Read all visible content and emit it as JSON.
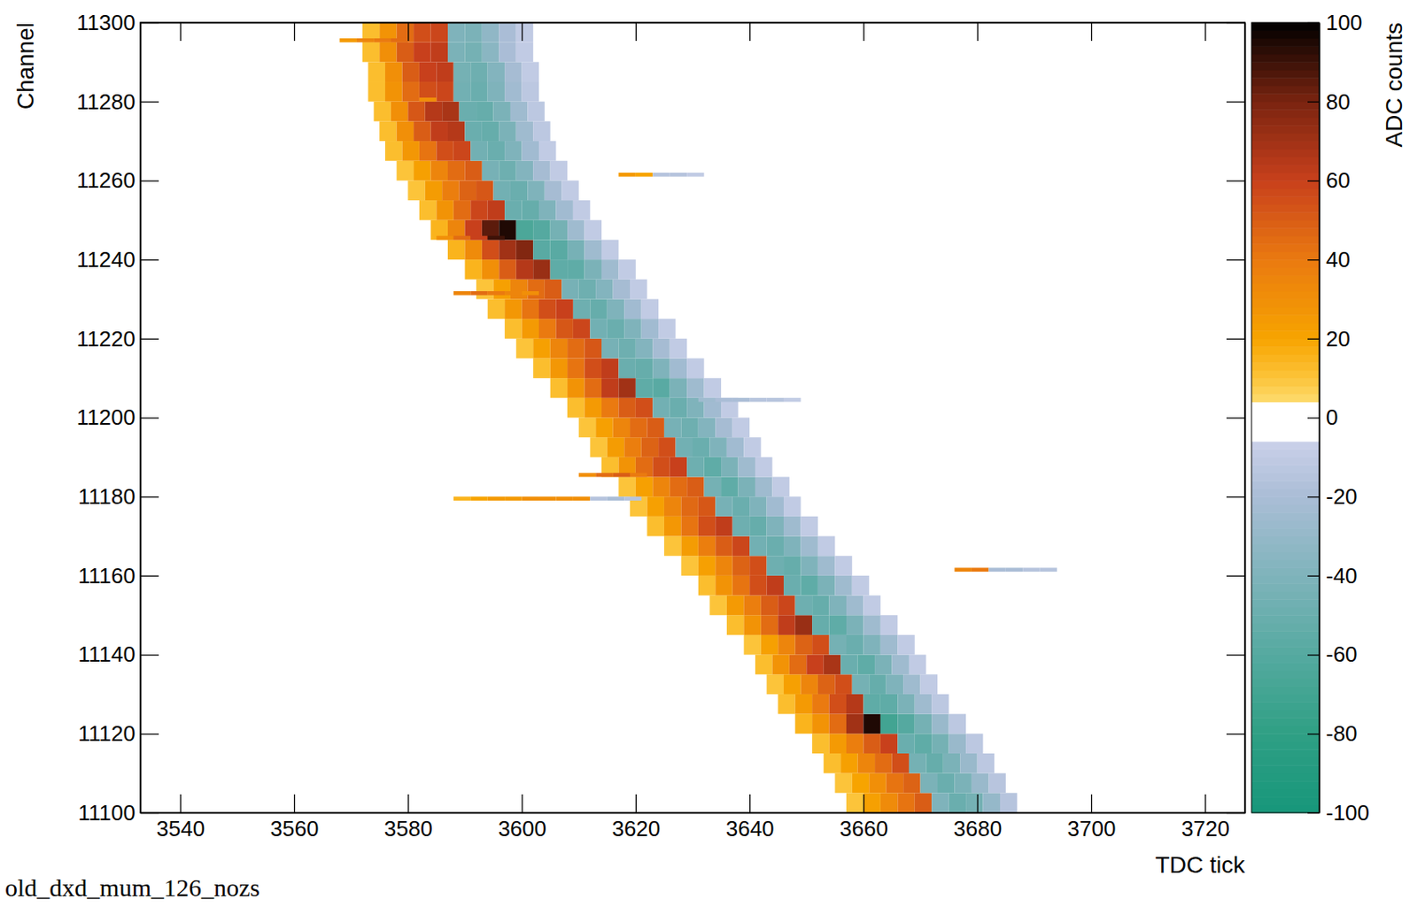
{
  "chart_data": {
    "type": "heatmap",
    "x_label": "TDC tick",
    "y_label": "Channel",
    "caption": "old_dxd_mum_126_nozs",
    "xlim": [
      3533,
      3727
    ],
    "ylim": [
      11100,
      11300
    ],
    "xticks": [
      3540,
      3560,
      3580,
      3600,
      3620,
      3640,
      3660,
      3680,
      3700,
      3720
    ],
    "yticks": [
      11100,
      11120,
      11140,
      11160,
      11180,
      11200,
      11220,
      11240,
      11260,
      11280,
      11300
    ],
    "colorbar": {
      "label": "ADC counts",
      "range": [
        -100,
        100
      ],
      "ticks": [
        -100,
        -80,
        -60,
        -40,
        -20,
        0,
        20,
        40,
        60,
        80,
        100
      ]
    },
    "blocks": [
      {
        "bin_channels": 5,
        "bin_ticks": 3,
        "rows": [
          {
            "channel": 11100,
            "tick0": 3657,
            "values": [
              10,
              22,
              32,
              42,
              50,
              -40,
              -50,
              -45,
              -30,
              -15
            ]
          },
          {
            "channel": 11105,
            "tick0": 3655,
            "values": [
              10,
              20,
              30,
              42,
              48,
              -42,
              -50,
              -42,
              -28,
              -14
            ]
          },
          {
            "channel": 11110,
            "tick0": 3653,
            "values": [
              12,
              22,
              35,
              45,
              55,
              -45,
              -52,
              -42,
              -28,
              -12
            ]
          },
          {
            "channel": 11115,
            "tick0": 3651,
            "values": [
              12,
              25,
              38,
              50,
              60,
              -50,
              -55,
              -45,
              -28,
              -12
            ]
          },
          {
            "channel": 11120,
            "tick0": 3648,
            "values": [
              15,
              28,
              45,
              70,
              95,
              -70,
              -60,
              -45,
              -28,
              -12
            ]
          },
          {
            "channel": 11125,
            "tick0": 3645,
            "values": [
              12,
              25,
              40,
              55,
              65,
              -55,
              -55,
              -42,
              -25,
              -12
            ]
          },
          {
            "channel": 11130,
            "tick0": 3643,
            "values": [
              10,
              22,
              35,
              48,
              55,
              -45,
              -52,
              -40,
              -25,
              -10
            ]
          },
          {
            "channel": 11135,
            "tick0": 3641,
            "values": [
              12,
              28,
              45,
              60,
              68,
              -50,
              -55,
              -42,
              -25,
              -10
            ]
          },
          {
            "channel": 11140,
            "tick0": 3639,
            "values": [
              10,
              22,
              35,
              48,
              55,
              -45,
              -50,
              -40,
              -25,
              -10
            ]
          },
          {
            "channel": 11145,
            "tick0": 3636,
            "values": [
              12,
              28,
              45,
              62,
              72,
              -52,
              -55,
              -42,
              -25,
              -10
            ]
          },
          {
            "channel": 11150,
            "tick0": 3633,
            "values": [
              10,
              25,
              38,
              50,
              58,
              -48,
              -52,
              -40,
              -25,
              -10
            ]
          },
          {
            "channel": 11155,
            "tick0": 3631,
            "values": [
              12,
              28,
              42,
              55,
              62,
              -50,
              -55,
              -42,
              -25,
              -10
            ]
          },
          {
            "channel": 11160,
            "tick0": 3628,
            "values": [
              10,
              22,
              35,
              48,
              55,
              -48,
              -52,
              -40,
              -25,
              -10
            ]
          },
          {
            "channel": 11165,
            "tick0": 3625,
            "values": [
              10,
              24,
              38,
              50,
              58,
              -46,
              -50,
              -40,
              -25,
              -10
            ]
          },
          {
            "channel": 11170,
            "tick0": 3622,
            "values": [
              12,
              26,
              42,
              55,
              62,
              -48,
              -52,
              -40,
              -25,
              -10
            ]
          },
          {
            "channel": 11175,
            "tick0": 3619,
            "values": [
              10,
              22,
              35,
              46,
              52,
              -44,
              -50,
              -40,
              -24,
              -10
            ]
          },
          {
            "channel": 11180,
            "tick0": 3617,
            "values": [
              10,
              22,
              35,
              45,
              50,
              -45,
              -55,
              -42,
              -25,
              -10
            ]
          },
          {
            "channel": 11185,
            "tick0": 3614,
            "values": [
              12,
              28,
              45,
              55,
              60,
              -48,
              -55,
              -42,
              -25,
              -10
            ]
          },
          {
            "channel": 11190,
            "tick0": 3612,
            "values": [
              10,
              24,
              38,
              48,
              55,
              -46,
              -50,
              -40,
              -24,
              -10
            ]
          },
          {
            "channel": 11195,
            "tick0": 3610,
            "values": [
              10,
              22,
              35,
              45,
              50,
              -44,
              -48,
              -38,
              -22,
              -10
            ]
          },
          {
            "channel": 11200,
            "tick0": 3608,
            "values": [
              12,
              25,
              40,
              50,
              55,
              -46,
              -50,
              -40,
              -24,
              -10
            ]
          },
          {
            "channel": 11205,
            "tick0": 3605,
            "values": [
              12,
              28,
              45,
              62,
              70,
              -55,
              -58,
              -42,
              -25,
              -10
            ]
          },
          {
            "channel": 11210,
            "tick0": 3602,
            "values": [
              12,
              26,
              42,
              55,
              62,
              -50,
              -52,
              -40,
              -24,
              -10
            ]
          },
          {
            "channel": 11215,
            "tick0": 3599,
            "values": [
              10,
              22,
              35,
              45,
              52,
              -44,
              -48,
              -38,
              -22,
              -10
            ]
          },
          {
            "channel": 11220,
            "tick0": 3597,
            "values": [
              12,
              25,
              40,
              52,
              58,
              -46,
              -50,
              -40,
              -24,
              -10
            ]
          },
          {
            "channel": 11225,
            "tick0": 3594,
            "values": [
              12,
              26,
              42,
              55,
              60,
              -48,
              -52,
              -40,
              -24,
              -10
            ]
          },
          {
            "channel": 11230,
            "tick0": 3592,
            "values": [
              10,
              22,
              35,
              45,
              50,
              -44,
              -48,
              -38,
              -22,
              -10
            ]
          },
          {
            "channel": 11235,
            "tick0": 3590,
            "values": [
              15,
              30,
              50,
              65,
              72,
              -55,
              -55,
              -42,
              -25,
              -10
            ]
          },
          {
            "channel": 11240,
            "tick0": 3587,
            "values": [
              15,
              32,
              55,
              70,
              78,
              -58,
              -58,
              -44,
              -25,
              -10
            ]
          },
          {
            "channel": 11245,
            "tick0": 3584,
            "values": [
              15,
              35,
              60,
              85,
              95,
              -65,
              -60,
              -45,
              -25,
              -10
            ]
          },
          {
            "channel": 11250,
            "tick0": 3582,
            "values": [
              12,
              28,
              45,
              58,
              62,
              -50,
              -52,
              -40,
              -24,
              -10
            ]
          },
          {
            "channel": 11255,
            "tick0": 3580,
            "values": [
              10,
              24,
              38,
              48,
              52,
              -46,
              -50,
              -40,
              -22,
              -10
            ]
          },
          {
            "channel": 11260,
            "tick0": 3578,
            "values": [
              10,
              22,
              35,
              45,
              50,
              -44,
              -48,
              -38,
              -22,
              -10
            ]
          },
          {
            "channel": 11265,
            "tick0": 3576,
            "values": [
              12,
              26,
              42,
              55,
              58,
              -46,
              -50,
              -40,
              -24,
              -10
            ]
          },
          {
            "channel": 11270,
            "tick0": 3575,
            "values": [
              12,
              30,
              50,
              62,
              65,
              -50,
              -52,
              -42,
              -25,
              -12
            ]
          },
          {
            "channel": 11275,
            "tick0": 3574,
            "values": [
              12,
              30,
              52,
              65,
              68,
              -50,
              -52,
              -42,
              -25,
              -12
            ]
          },
          {
            "channel": 11280,
            "tick0": 3573,
            "values": [
              12,
              28,
              45,
              55,
              58,
              -46,
              -50,
              -40,
              -24,
              -12
            ]
          },
          {
            "channel": 11285,
            "tick0": 3573,
            "values": [
              12,
              30,
              50,
              60,
              62,
              -45,
              -48,
              -38,
              -22,
              -10
            ]
          },
          {
            "channel": 11290,
            "tick0": 3572,
            "values": [
              12,
              30,
              50,
              60,
              62,
              -42,
              -45,
              -35,
              -20,
              -10
            ]
          },
          {
            "channel": 11295,
            "tick0": 3572,
            "values": [
              12,
              28,
              45,
              55,
              58,
              -40,
              -42,
              -32,
              -20,
              -10
            ]
          }
        ]
      },
      {
        "bin_channels": 1,
        "bin_ticks": 3,
        "rows": [
          {
            "channel": 11179,
            "tick0": 3588,
            "values": [
              15,
              20,
              25,
              25,
              30,
              30,
              30,
              30,
              -15,
              -20,
              -15
            ]
          },
          {
            "channel": 11185,
            "tick0": 3610,
            "values": [
              30,
              45,
              50,
              40
            ]
          },
          {
            "channel": 11231,
            "tick0": 3588,
            "values": [
              35,
              45,
              40,
              35,
              30
            ]
          },
          {
            "channel": 11245,
            "tick0": 3585,
            "values": [
              30,
              45,
              60,
              90
            ]
          },
          {
            "channel": 11204,
            "tick0": 3631,
            "values": [
              -25,
              -20,
              -20,
              -15,
              -15,
              -10
            ]
          },
          {
            "channel": 11161,
            "tick0": 3676,
            "values": [
              35,
              40,
              -20,
              -20,
              -15,
              -15
            ]
          },
          {
            "channel": 11261,
            "tick0": 3617,
            "values": [
              25,
              20,
              -15,
              -15,
              -10
            ]
          },
          {
            "channel": 11295,
            "tick0": 3568,
            "values": [
              25,
              35,
              40,
              45
            ]
          },
          {
            "channel": 11280,
            "tick0": 3582,
            "values": [
              30
            ]
          }
        ]
      }
    ]
  }
}
